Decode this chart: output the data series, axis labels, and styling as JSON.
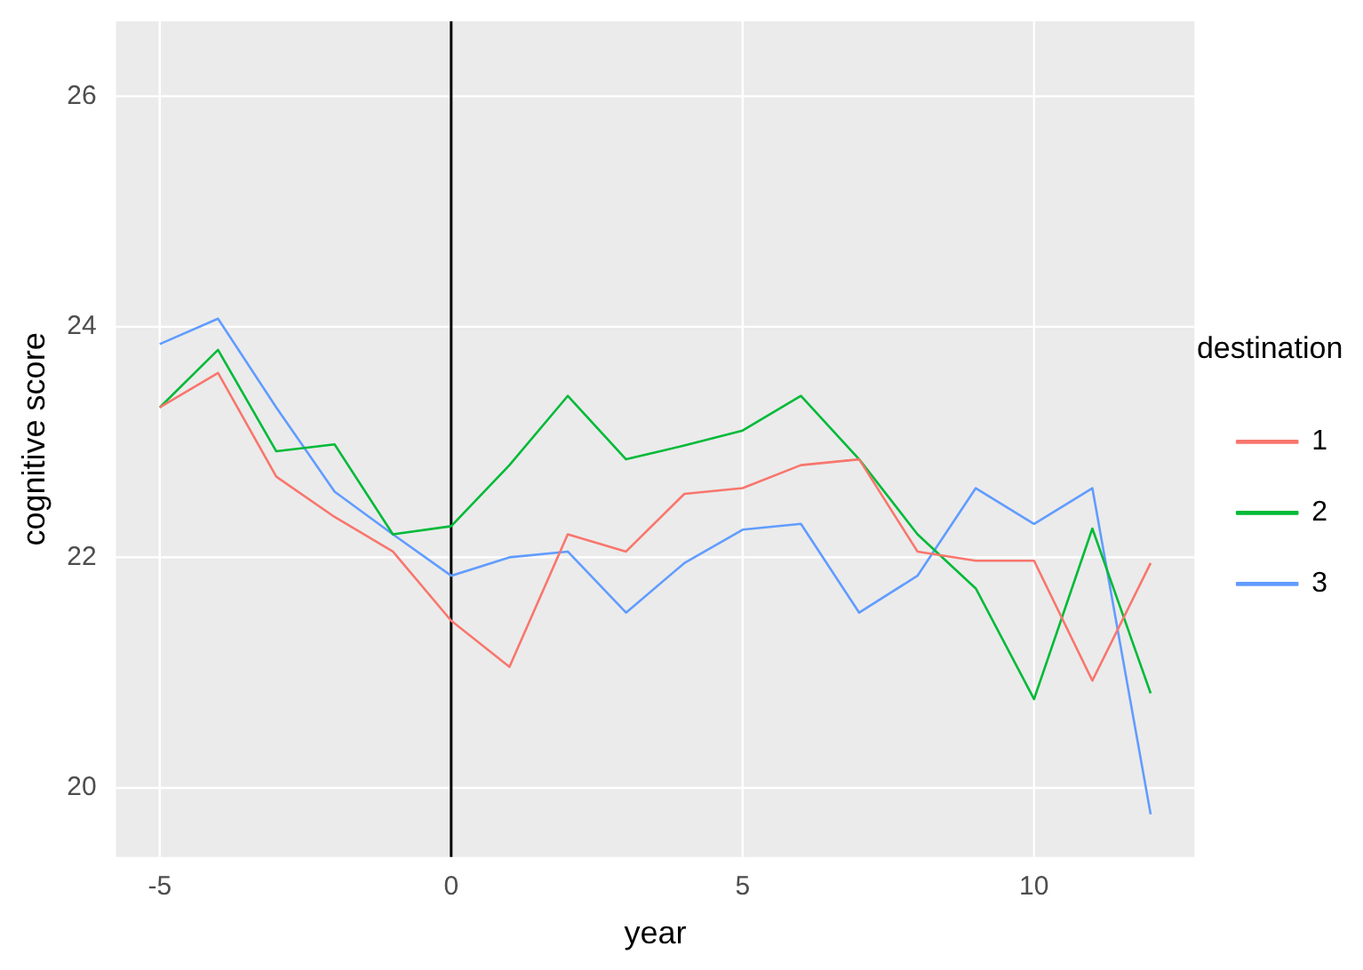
{
  "chart_data": {
    "type": "line",
    "xlabel": "year",
    "ylabel": "cognitive score",
    "legend_title": "destination",
    "x": [
      -5,
      -4,
      -3,
      -2,
      -1,
      0,
      1,
      2,
      3,
      4,
      5,
      6,
      7,
      8,
      9,
      10,
      11,
      12
    ],
    "series": [
      {
        "name": "1",
        "color": "#f8766d",
        "values": [
          23.3,
          23.6,
          22.7,
          22.35,
          22.05,
          21.45,
          21.05,
          22.2,
          22.05,
          22.55,
          22.6,
          22.8,
          22.85,
          22.05,
          21.97,
          21.97,
          20.93,
          21.95
        ]
      },
      {
        "name": "2",
        "color": "#00ba38",
        "values": [
          23.3,
          23.8,
          22.92,
          22.98,
          22.2,
          22.27,
          22.8,
          23.4,
          22.85,
          22.97,
          23.1,
          23.4,
          22.85,
          22.2,
          21.73,
          20.77,
          22.25,
          20.82
        ]
      },
      {
        "name": "3",
        "color": "#619cff",
        "values": [
          23.85,
          24.07,
          23.3,
          22.57,
          22.2,
          21.84,
          22.0,
          22.05,
          21.52,
          21.95,
          22.24,
          22.29,
          21.52,
          21.84,
          22.6,
          22.29,
          22.6,
          19.77
        ]
      }
    ],
    "xlim": [
      -5.75,
      12.75
    ],
    "ylim": [
      19.4,
      26.65
    ],
    "xticks": [
      -5,
      0,
      5,
      10
    ],
    "yticks": [
      20,
      22,
      24,
      26
    ],
    "ref_lines": [
      {
        "axis": "x",
        "value": 0,
        "color": "#000000"
      }
    ],
    "grid": true,
    "legend": "right",
    "marker": "none",
    "line_style": "solid"
  }
}
